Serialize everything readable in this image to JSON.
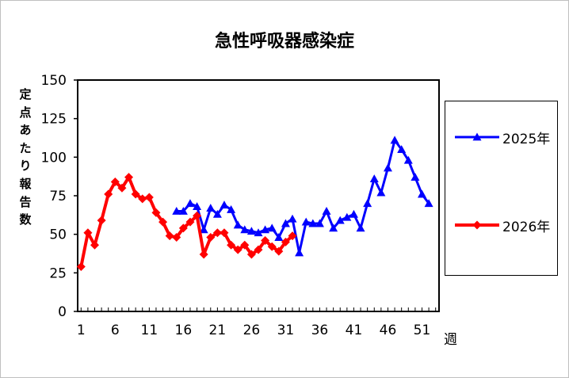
{
  "chart_data": {
    "type": "line",
    "title": "急性呼吸器感染症",
    "xlabel": "週",
    "ylabel": "定点あたり報告数",
    "xlim": [
      1,
      53
    ],
    "ylim": [
      0,
      150
    ],
    "xticks": [
      1,
      6,
      11,
      16,
      21,
      26,
      31,
      36,
      41,
      46,
      51
    ],
    "yticks": [
      0,
      25,
      50,
      75,
      100,
      125,
      150
    ],
    "grid": false,
    "legend_position": "right",
    "series": [
      {
        "name": "2025年",
        "color": "#0000ff",
        "marker": "triangle",
        "x": [
          15,
          16,
          17,
          18,
          19,
          20,
          21,
          22,
          23,
          24,
          25,
          26,
          27,
          28,
          29,
          30,
          31,
          32,
          33,
          34,
          35,
          36,
          37,
          38,
          39,
          40,
          41,
          42,
          43,
          44,
          45,
          46,
          47,
          48,
          49,
          50,
          51,
          52
        ],
        "values": [
          65,
          65,
          70,
          68,
          53,
          67,
          63,
          69,
          66,
          56,
          53,
          52,
          51,
          53,
          54,
          48,
          57,
          60,
          38,
          58,
          57,
          57,
          65,
          54,
          59,
          61,
          63,
          54,
          70,
          86,
          77,
          93,
          111,
          105,
          98,
          87,
          76,
          70
        ]
      },
      {
        "name": "2026年",
        "color": "#ff0000",
        "marker": "diamond",
        "x": [
          1,
          2,
          3,
          4,
          5,
          6,
          7,
          8,
          9,
          10,
          11,
          12,
          13,
          14,
          15,
          16,
          17,
          18,
          19,
          20,
          21,
          22,
          23,
          24,
          25,
          26,
          27,
          28,
          29,
          30,
          31,
          32
        ],
        "values": [
          29,
          51,
          43,
          59,
          76,
          84,
          80,
          87,
          76,
          73,
          74,
          64,
          58,
          49,
          48,
          54,
          58,
          62,
          37,
          48,
          51,
          51,
          43,
          40,
          43,
          37,
          40,
          46,
          42,
          39,
          45,
          49
        ]
      }
    ]
  }
}
